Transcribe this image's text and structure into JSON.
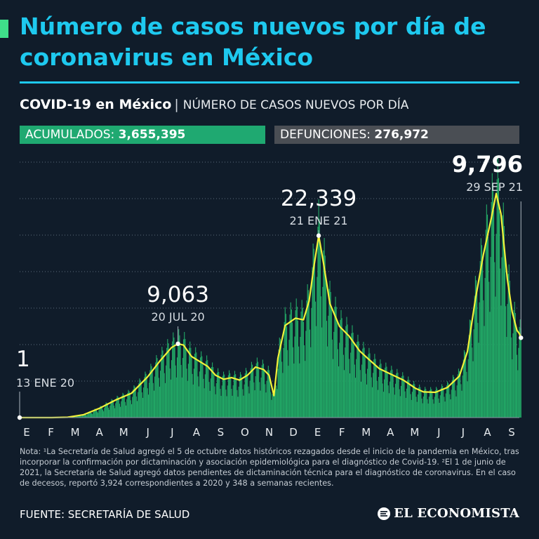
{
  "header": {
    "title": "Número de casos nuevos por día de coronavirus en México"
  },
  "subheader": {
    "bold": "COVID-19 en México",
    "separator": "|",
    "light": "NÚMERO DE CASOS NUEVOS POR DÍA"
  },
  "stats": {
    "acumulados_label": "ACUMULADOS:",
    "acumulados_value": "3,655,395",
    "defunciones_label": "DEFUNCIONES:",
    "defunciones_value": "276,972"
  },
  "colors": {
    "title": "#1ec9ef",
    "bars": "#22a866",
    "line": "#f2f23a",
    "badge_acumulados": "#1fa971",
    "badge_defunciones": "#4a4e54",
    "background": "#101c2a"
  },
  "chart_data": {
    "type": "bar",
    "x_tick_labels": [
      "E",
      "F",
      "M",
      "A",
      "M",
      "J",
      "J",
      "A",
      "S",
      "O",
      "N",
      "D",
      "E",
      "F",
      "M",
      "A",
      "M",
      "J",
      "J",
      "A",
      "S"
    ],
    "x_start": "2020-01-13",
    "x_end": "2021-09-29",
    "ylim": [
      0,
      28000
    ],
    "grid": true,
    "series": [
      {
        "values": [
          [
            0,
            0
          ],
          [
            40,
            0
          ],
          [
            60,
            40
          ],
          [
            80,
            350
          ],
          [
            100,
            1150
          ],
          [
            120,
            2150
          ],
          [
            140,
            3000
          ],
          [
            160,
            5000
          ],
          [
            175,
            6900
          ],
          [
            190,
            8600
          ],
          [
            198,
            9063
          ],
          [
            205,
            8900
          ],
          [
            215,
            7500
          ],
          [
            225,
            6900
          ],
          [
            235,
            6300
          ],
          [
            245,
            5200
          ],
          [
            255,
            4700
          ],
          [
            265,
            4900
          ],
          [
            275,
            4600
          ],
          [
            285,
            5200
          ],
          [
            295,
            6200
          ],
          [
            305,
            5900
          ],
          [
            312,
            5200
          ],
          [
            318,
            2700
          ],
          [
            323,
            7300
          ],
          [
            332,
            11300
          ],
          [
            345,
            12200
          ],
          [
            355,
            12000
          ],
          [
            362,
            14300
          ],
          [
            368,
            18500
          ],
          [
            374,
            22339
          ],
          [
            380,
            19000
          ],
          [
            388,
            14000
          ],
          [
            400,
            11200
          ],
          [
            412,
            10000
          ],
          [
            425,
            8200
          ],
          [
            435,
            7300
          ],
          [
            450,
            6000
          ],
          [
            465,
            5300
          ],
          [
            480,
            4600
          ],
          [
            495,
            3600
          ],
          [
            505,
            3150
          ],
          [
            520,
            3100
          ],
          [
            535,
            3700
          ],
          [
            550,
            5100
          ],
          [
            560,
            8100
          ],
          [
            570,
            14500
          ],
          [
            580,
            20000
          ],
          [
            590,
            24500
          ],
          [
            596,
            27500
          ],
          [
            602,
            25000
          ],
          [
            610,
            17000
          ],
          [
            616,
            13000
          ],
          [
            622,
            10700
          ],
          [
            625,
            10300
          ],
          [
            627,
            9796
          ]
        ]
      }
    ],
    "annotations": [
      {
        "value": "1",
        "date": "13 ENE 20",
        "x": 0,
        "y": 0
      },
      {
        "value": "9,063",
        "date": "20 JUL 20",
        "x": 198,
        "y": 9063
      },
      {
        "value": "22,339",
        "date": "21 ENE 21",
        "x": 374,
        "y": 22339
      },
      {
        "value": "9,796",
        "date": "29 SEP 21",
        "x": 627,
        "y": 9796
      }
    ]
  },
  "footer": {
    "note": "Nota: ¹La Secretaría de Salud agregó el 5 de octubre datos históricos rezagados desde el inicio de la pandemia en México, tras incorporar la confirmación por dictaminación y asociación epidemiológica para el diagnóstico de Covid-19. ²El 1 de junio de 2021, la Secretaría de Salud agregó datos pendientes de dictaminación técnica para el diagnóstico de coronavirus. En el caso de decesos, reportó 3,924 correspondientes a 2020 y 348 a semanas recientes.",
    "source": "FUENTE: SECRETARÍA DE SALUD",
    "logo_text": "EL ECONOMISTA",
    "logo_icon": "el-economista-logo-icon"
  }
}
